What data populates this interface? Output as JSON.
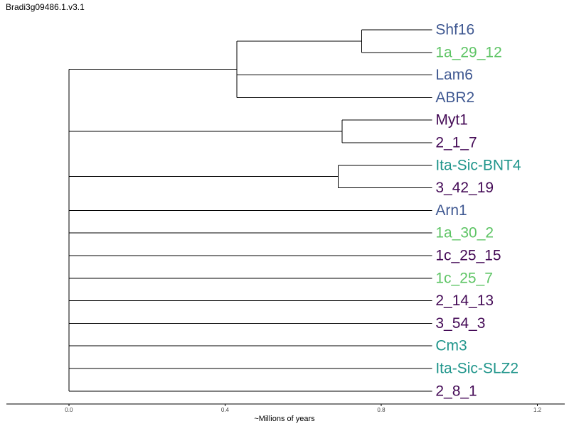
{
  "title": "Bradi3g09486.1.v3.1",
  "axis": {
    "label": "~Millions of years",
    "ticks": [
      "0.0",
      "0.4",
      "0.8",
      "1.2"
    ],
    "tick_values": [
      0.0,
      0.4,
      0.8,
      1.2
    ],
    "range": [
      -0.16,
      1.27
    ]
  },
  "colors": {
    "blue": "#3f5891",
    "green": "#5dc464",
    "purple": "#440a56",
    "teal": "#1f958b"
  },
  "tree": {
    "leaves": [
      {
        "label": "Shf16",
        "color": "blue"
      },
      {
        "label": "1a_29_12",
        "color": "green"
      },
      {
        "label": "Lam6",
        "color": "blue"
      },
      {
        "label": "ABR2",
        "color": "blue"
      },
      {
        "label": "Myt1",
        "color": "purple"
      },
      {
        "label": "2_1_7",
        "color": "purple"
      },
      {
        "label": "Ita-Sic-BNT4",
        "color": "teal"
      },
      {
        "label": "3_42_19",
        "color": "purple"
      },
      {
        "label": "Arn1",
        "color": "blue"
      },
      {
        "label": "1a_30_2",
        "color": "green"
      },
      {
        "label": "1c_25_15",
        "color": "purple"
      },
      {
        "label": "1c_25_7",
        "color": "green"
      },
      {
        "label": "2_14_13",
        "color": "purple"
      },
      {
        "label": "3_54_3",
        "color": "purple"
      },
      {
        "label": "Cm3",
        "color": "teal"
      },
      {
        "label": "Ita-Sic-SLZ2",
        "color": "teal"
      },
      {
        "label": "2_8_1",
        "color": "purple"
      }
    ],
    "tip_depth": 0.93,
    "root_depth": 0.0,
    "clades": [
      {
        "members": [
          0,
          1
        ],
        "depth": 0.75
      },
      {
        "members": [
          0,
          1,
          2,
          3
        ],
        "depth": 0.43
      },
      {
        "members": [
          4,
          5
        ],
        "depth": 0.7
      },
      {
        "members": [
          6,
          7
        ],
        "depth": 0.69
      }
    ]
  }
}
